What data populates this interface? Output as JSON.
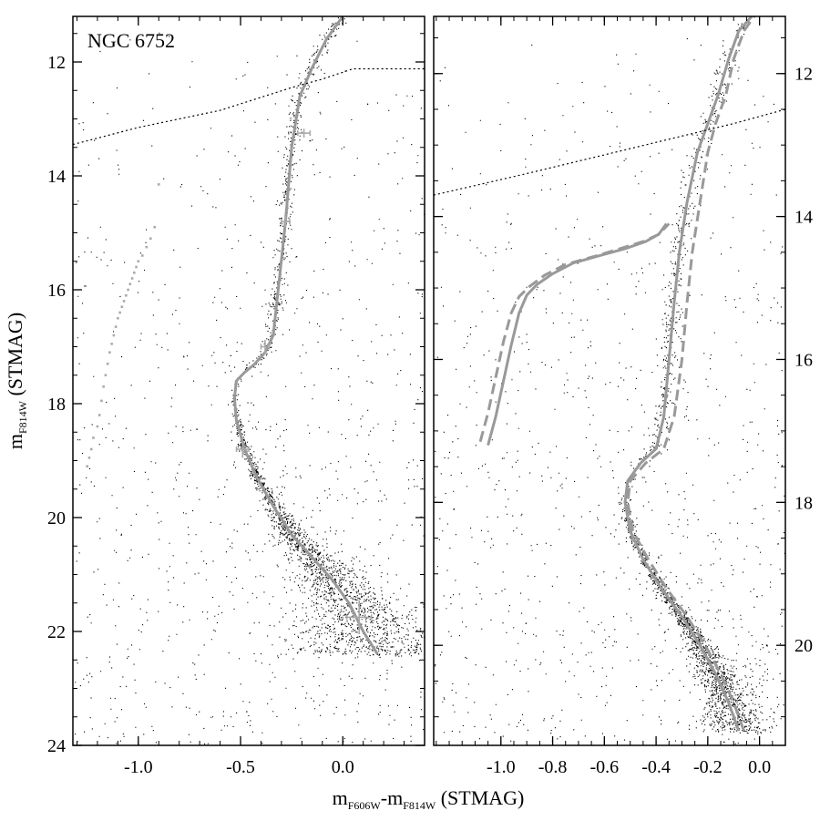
{
  "chart_data": [
    {
      "type": "scatter",
      "title": "NGC 6752",
      "xlabel": {
        "main": "m",
        "sub1": "F606W",
        "mid": "-m",
        "sub2": "F814W",
        "unit": " (STMAG)"
      },
      "ylabel": {
        "main": "m",
        "sub": "F814W",
        "unit": " (STMAG)"
      },
      "xlim": [
        -1.32,
        0.4
      ],
      "ylim": [
        24.0,
        11.2
      ],
      "y_inverted": true,
      "x_ticks": [
        "-1.0",
        "-0.5",
        "0.0"
      ],
      "x_tick_values": [
        -1.0,
        -0.5,
        0.0
      ],
      "y_ticks": [
        "12",
        "14",
        "16",
        "18",
        "20",
        "22",
        "24"
      ],
      "y_tick_values": [
        12,
        14,
        16,
        18,
        20,
        22,
        24
      ],
      "series": [
        {
          "kind": "fiducial",
          "color": "#999999",
          "x": [
            0.17,
            0.1,
            0.03,
            -0.05,
            -0.15,
            -0.25,
            -0.34,
            -0.42,
            -0.48,
            -0.52,
            -0.53,
            -0.52,
            -0.48,
            -0.43,
            -0.38,
            -0.34,
            -0.31,
            -0.28,
            -0.25,
            -0.21,
            -0.15,
            -0.08,
            0.0
          ],
          "y": [
            22.4,
            22.0,
            21.5,
            21.1,
            20.7,
            20.3,
            19.8,
            19.3,
            18.8,
            18.3,
            17.9,
            17.6,
            17.45,
            17.3,
            17.1,
            16.8,
            15.8,
            14.8,
            13.5,
            12.6,
            12.1,
            11.6,
            11.2
          ]
        },
        {
          "kind": "reddening-line",
          "style": "dotted",
          "x": [
            -1.32,
            -1.0,
            -0.6,
            -0.25,
            -0.1,
            0.05,
            0.4
          ],
          "y": [
            13.45,
            13.15,
            12.85,
            12.45,
            12.3,
            12.12,
            12.12
          ]
        },
        {
          "kind": "hb-points",
          "color": "#aaaaaa",
          "x": [
            -1.25,
            -1.24,
            -1.23,
            -1.22,
            -1.2,
            -1.19,
            -1.18,
            -1.17,
            -1.16,
            -1.15,
            -1.14,
            -1.13,
            -1.12,
            -1.11,
            -1.1,
            -1.09,
            -1.08,
            -1.07,
            -1.06,
            -1.05,
            -1.04,
            -1.03,
            -1.02,
            -1.01,
            -1.0,
            -0.98,
            -0.96,
            -0.94,
            -0.92,
            -0.9
          ],
          "y": [
            19.1,
            18.95,
            18.8,
            18.6,
            18.4,
            18.2,
            17.95,
            17.7,
            17.5,
            17.3,
            17.1,
            16.95,
            16.8,
            16.65,
            16.5,
            16.4,
            16.3,
            16.2,
            16.1,
            16.0,
            15.9,
            15.8,
            15.7,
            15.6,
            15.5,
            15.4,
            15.25,
            15.1,
            14.9,
            14.15
          ]
        },
        {
          "kind": "error-bars",
          "color": "#aaaaaa",
          "x": [
            -0.19,
            -0.28,
            -0.38,
            -0.49,
            0.08
          ],
          "y": [
            13.25,
            14.8,
            17.0,
            18.8,
            21.75
          ],
          "xerr": [
            0.03,
            0.02,
            0.02,
            0.03,
            0.06
          ],
          "yerr": [
            0.08,
            0.1,
            0.12,
            0.15,
            0.3
          ]
        }
      ]
    },
    {
      "type": "scatter",
      "title": "",
      "xlabel": "",
      "ylabel": "",
      "xlim": [
        -1.26,
        0.1
      ],
      "ylim": [
        21.4,
        11.2
      ],
      "y_inverted": true,
      "y_axis_side": "right",
      "x_ticks": [
        "-1.0",
        "-0.8",
        "-0.6",
        "-0.4",
        "-0.2",
        "0.0"
      ],
      "x_tick_values": [
        -1.0,
        -0.8,
        -0.6,
        -0.4,
        -0.2,
        0.0
      ],
      "y_ticks": [
        "12",
        "14",
        "16",
        "18",
        "20"
      ],
      "y_tick_values": [
        12,
        14,
        16,
        18,
        20
      ],
      "series": [
        {
          "kind": "isochrone-solid",
          "color": "#999999",
          "x": [
            -0.08,
            -0.12,
            -0.17,
            -0.23,
            -0.3,
            -0.38,
            -0.45,
            -0.5,
            -0.52,
            -0.51,
            -0.46,
            -0.4,
            -0.37,
            -0.35,
            -0.33,
            -0.31,
            -0.28,
            -0.24,
            -0.2,
            -0.16,
            -0.12,
            -0.08,
            -0.03
          ],
          "y": [
            21.2,
            20.8,
            20.4,
            20.0,
            19.6,
            19.2,
            18.8,
            18.4,
            18.0,
            17.7,
            17.45,
            17.25,
            16.8,
            16.0,
            15.2,
            14.5,
            13.8,
            13.1,
            12.7,
            12.3,
            11.8,
            11.4,
            11.2
          ]
        },
        {
          "kind": "isochrone-dashed",
          "color": "#999999",
          "x": [
            -0.06,
            -0.1,
            -0.15,
            -0.21,
            -0.28,
            -0.36,
            -0.43,
            -0.49,
            -0.51,
            -0.5,
            -0.44,
            -0.37,
            -0.33,
            -0.3,
            -0.28,
            -0.26,
            -0.23,
            -0.2,
            -0.17,
            -0.13,
            -0.1,
            -0.06,
            -0.02
          ],
          "y": [
            21.2,
            20.8,
            20.4,
            20.0,
            19.6,
            19.2,
            18.8,
            18.4,
            18.0,
            17.7,
            17.45,
            17.25,
            16.8,
            16.0,
            15.2,
            14.5,
            13.8,
            13.1,
            12.7,
            12.3,
            11.8,
            11.4,
            11.2
          ]
        },
        {
          "kind": "hb-solid",
          "color": "#999999",
          "x": [
            -1.05,
            -1.02,
            -0.99,
            -0.96,
            -0.93,
            -0.9,
            -0.86,
            -0.8,
            -0.72,
            -0.62,
            -0.52,
            -0.44,
            -0.39,
            -0.36
          ],
          "y": [
            17.2,
            16.8,
            16.3,
            15.8,
            15.35,
            15.1,
            14.95,
            14.8,
            14.65,
            14.55,
            14.45,
            14.35,
            14.25,
            14.1
          ]
        },
        {
          "kind": "hb-dashed",
          "color": "#999999",
          "x": [
            -1.08,
            -1.05,
            -1.02,
            -0.99,
            -0.96,
            -0.93,
            -0.89,
            -0.83,
            -0.75,
            -0.64,
            -0.54,
            -0.45,
            -0.39,
            -0.35
          ],
          "y": [
            17.15,
            16.75,
            16.25,
            15.75,
            15.35,
            15.12,
            14.98,
            14.82,
            14.67,
            14.56,
            14.45,
            14.35,
            14.25,
            14.1
          ]
        },
        {
          "kind": "reddening-line",
          "style": "dotted",
          "x": [
            -1.26,
            -0.9,
            -0.5,
            -0.1,
            0.1
          ],
          "y": [
            13.7,
            13.4,
            13.05,
            12.7,
            12.5
          ]
        }
      ]
    }
  ]
}
